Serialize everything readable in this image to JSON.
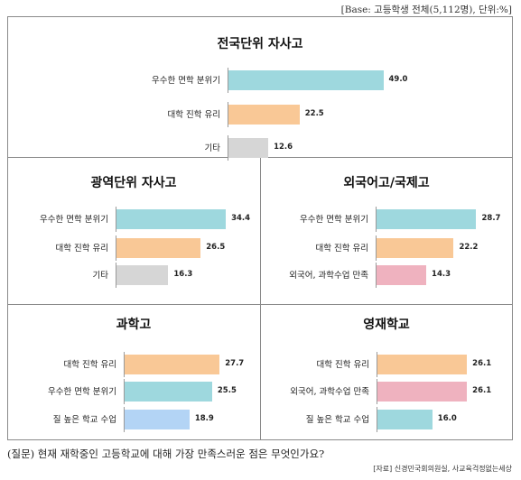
{
  "base_note": "[Base: 고등학생 전체(5,112명), 단위:%]",
  "question": "(질문) 현재 재학중인 고등학교에 대해 가장 만족스러운 점은 무엇인가요?",
  "source": "[자료] 신경민국회의원실, 사교육걱정없는세상",
  "colors": {
    "teal": "#9ed8de",
    "orange": "#f9c896",
    "gray": "#d6d6d6",
    "pink": "#efb2bf",
    "blue": "#b3d4f5"
  },
  "chart_data": [
    {
      "type": "bar",
      "orientation": "horizontal",
      "title": "전국단위 자사고",
      "categories": [
        "우수한 면학 분위기",
        "대학 진학 유리",
        "기타"
      ],
      "values": [
        49.0,
        22.5,
        12.6
      ],
      "labels": [
        "49.0",
        "22.5",
        "12.6"
      ],
      "bar_colors": [
        "#9ed8de",
        "#f9c896",
        "#d6d6d6"
      ]
    },
    {
      "type": "bar",
      "orientation": "horizontal",
      "title": "광역단위 자사고",
      "categories": [
        "우수한 면학 분위기",
        "대학 진학 유리",
        "기타"
      ],
      "values": [
        34.4,
        26.5,
        16.3
      ],
      "labels": [
        "34.4",
        "26.5",
        "16.3"
      ],
      "bar_colors": [
        "#9ed8de",
        "#f9c896",
        "#d6d6d6"
      ]
    },
    {
      "type": "bar",
      "orientation": "horizontal",
      "title": "외국어고/국제고",
      "categories": [
        "우수한 면학 분위기",
        "대학 진학 유리",
        "외국어, 과학수업 만족"
      ],
      "values": [
        28.7,
        22.2,
        14.3
      ],
      "labels": [
        "28.7",
        "22.2",
        "14.3"
      ],
      "bar_colors": [
        "#9ed8de",
        "#f9c896",
        "#efb2bf"
      ]
    },
    {
      "type": "bar",
      "orientation": "horizontal",
      "title": "과학고",
      "categories": [
        "대학 진학 유리",
        "우수한 면학 분위기",
        "질 높은 학교 수업"
      ],
      "values": [
        27.7,
        25.5,
        18.9
      ],
      "labels": [
        "27.7",
        "25.5",
        "18.9"
      ],
      "bar_colors": [
        "#f9c896",
        "#9ed8de",
        "#b3d4f5"
      ]
    },
    {
      "type": "bar",
      "orientation": "horizontal",
      "title": "영재학교",
      "categories": [
        "대학 진학 유리",
        "외국어, 과학수업 만족",
        "질 높은 학교 수업"
      ],
      "values": [
        26.1,
        26.1,
        16.0
      ],
      "labels": [
        "26.1",
        "26.1",
        "16.0"
      ],
      "bar_colors": [
        "#f9c896",
        "#efb2bf",
        "#9ed8de"
      ]
    }
  ]
}
